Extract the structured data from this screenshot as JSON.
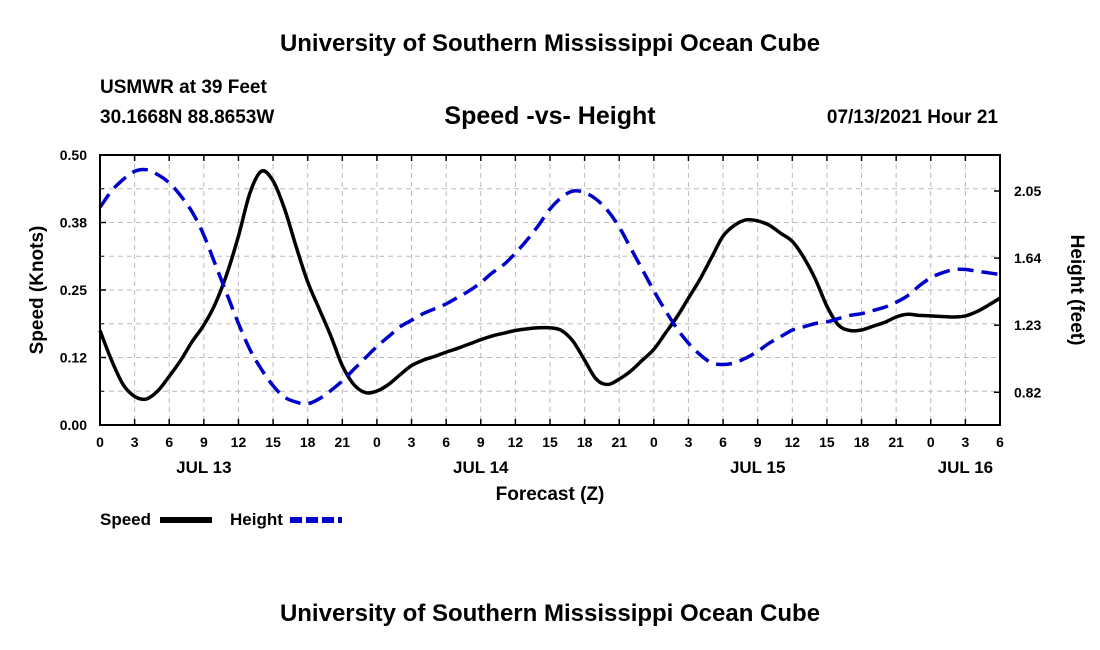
{
  "header": {
    "title": "University of Southern Mississippi Ocean Cube",
    "station": "USMWR at 39 Feet",
    "coords": "30.1668N  88.8653W",
    "subtitle": "Speed -vs- Height",
    "datetime": "07/13/2021 Hour 21"
  },
  "footer": {
    "title": "University of Southern Mississippi Ocean Cube"
  },
  "chart_data": {
    "type": "line",
    "xlabel": "Forecast (Z)",
    "ylabel": "Speed (Knots)",
    "y2label": "Height (feet)",
    "x_ticks": [
      0,
      3,
      6,
      9,
      12,
      15,
      18,
      21,
      24,
      27,
      30,
      33,
      36,
      39,
      42,
      45,
      48,
      51,
      54,
      57,
      60,
      63,
      66,
      69,
      72,
      75,
      78
    ],
    "x_tick_labels": [
      "0",
      "3",
      "6",
      "9",
      "12",
      "15",
      "18",
      "21",
      "0",
      "3",
      "6",
      "9",
      "12",
      "15",
      "18",
      "21",
      "0",
      "3",
      "6",
      "9",
      "12",
      "15",
      "18",
      "21",
      "0",
      "3",
      "6"
    ],
    "x_range": [
      0,
      78
    ],
    "date_labels": [
      {
        "hour": 9,
        "label": "JUL 13"
      },
      {
        "hour": 33,
        "label": "JUL 14"
      },
      {
        "hour": 57,
        "label": "JUL 15"
      },
      {
        "hour": 75,
        "label": "JUL 16"
      }
    ],
    "y_range": [
      0,
      0.5
    ],
    "y_ticks": [
      0,
      0.125,
      0.25,
      0.375,
      0.5
    ],
    "y_tick_labels": [
      "0.00",
      "0.12",
      "0.25",
      "0.38",
      "0.50"
    ],
    "y2_range": [
      0.62,
      2.27
    ],
    "y2_ticks": [
      0.82,
      1.23,
      1.64,
      2.05
    ],
    "y2_tick_labels": [
      "0.82",
      "1.23",
      "1.64",
      "2.05"
    ],
    "grid": true,
    "legend": [
      "Speed",
      "Height"
    ],
    "series": [
      {
        "name": "Speed",
        "color": "#000000",
        "dashed": false,
        "axis": "left",
        "x": [
          0,
          1,
          2,
          3,
          4,
          5,
          6,
          7,
          8,
          9,
          10,
          11,
          12,
          13,
          14,
          15,
          16,
          17,
          18,
          19,
          20,
          21,
          22,
          23,
          24,
          25,
          26,
          27,
          28,
          29,
          30,
          31,
          32,
          33,
          34,
          35,
          36,
          37,
          38,
          39,
          40,
          41,
          42,
          43,
          44,
          45,
          46,
          47,
          48,
          49,
          50,
          51,
          52,
          53,
          54,
          55,
          56,
          57,
          58,
          59,
          60,
          61,
          62,
          63,
          64,
          65,
          66,
          67,
          68,
          69,
          70,
          71,
          72,
          73,
          74,
          75,
          76,
          77,
          78
        ],
        "values": [
          0.175,
          0.12,
          0.075,
          0.053,
          0.048,
          0.063,
          0.09,
          0.12,
          0.155,
          0.185,
          0.225,
          0.28,
          0.35,
          0.43,
          0.47,
          0.452,
          0.4,
          0.33,
          0.265,
          0.215,
          0.165,
          0.11,
          0.075,
          0.06,
          0.063,
          0.075,
          0.093,
          0.11,
          0.12,
          0.127,
          0.135,
          0.142,
          0.15,
          0.158,
          0.165,
          0.17,
          0.175,
          0.178,
          0.18,
          0.18,
          0.175,
          0.155,
          0.12,
          0.085,
          0.075,
          0.085,
          0.1,
          0.12,
          0.14,
          0.17,
          0.2,
          0.235,
          0.27,
          0.31,
          0.35,
          0.37,
          0.38,
          0.378,
          0.37,
          0.355,
          0.34,
          0.31,
          0.27,
          0.22,
          0.185,
          0.175,
          0.176,
          0.183,
          0.19,
          0.2,
          0.205,
          0.203,
          0.202,
          0.201,
          0.2,
          0.202,
          0.21,
          0.222,
          0.235
        ]
      },
      {
        "name": "Height",
        "color": "#0000cc",
        "dashed": true,
        "axis": "right",
        "x": [
          0,
          1,
          2,
          3,
          4,
          5,
          6,
          7,
          8,
          9,
          10,
          11,
          12,
          13,
          14,
          15,
          16,
          17,
          18,
          19,
          20,
          21,
          22,
          23,
          24,
          25,
          26,
          27,
          28,
          29,
          30,
          31,
          32,
          33,
          34,
          35,
          36,
          37,
          38,
          39,
          40,
          41,
          42,
          43,
          44,
          45,
          46,
          47,
          48,
          49,
          50,
          51,
          52,
          53,
          54,
          55,
          56,
          57,
          58,
          59,
          60,
          61,
          62,
          63,
          64,
          65,
          66,
          67,
          68,
          69,
          70,
          71,
          72,
          73,
          74,
          75,
          76,
          77,
          78
        ],
        "values": [
          1.95,
          2.05,
          2.12,
          2.17,
          2.18,
          2.15,
          2.1,
          2.02,
          1.92,
          1.78,
          1.6,
          1.42,
          1.24,
          1.08,
          0.96,
          0.86,
          0.79,
          0.76,
          0.75,
          0.78,
          0.83,
          0.89,
          0.96,
          1.03,
          1.1,
          1.16,
          1.22,
          1.26,
          1.3,
          1.33,
          1.36,
          1.4,
          1.44,
          1.49,
          1.55,
          1.6,
          1.67,
          1.75,
          1.84,
          1.94,
          2.01,
          2.05,
          2.04,
          2.0,
          1.93,
          1.83,
          1.7,
          1.57,
          1.44,
          1.32,
          1.21,
          1.12,
          1.05,
          1.0,
          0.99,
          1.0,
          1.03,
          1.07,
          1.12,
          1.16,
          1.2,
          1.22,
          1.24,
          1.25,
          1.27,
          1.29,
          1.3,
          1.32,
          1.34,
          1.37,
          1.41,
          1.47,
          1.52,
          1.55,
          1.57,
          1.57,
          1.56,
          1.55,
          1.54
        ]
      }
    ]
  }
}
